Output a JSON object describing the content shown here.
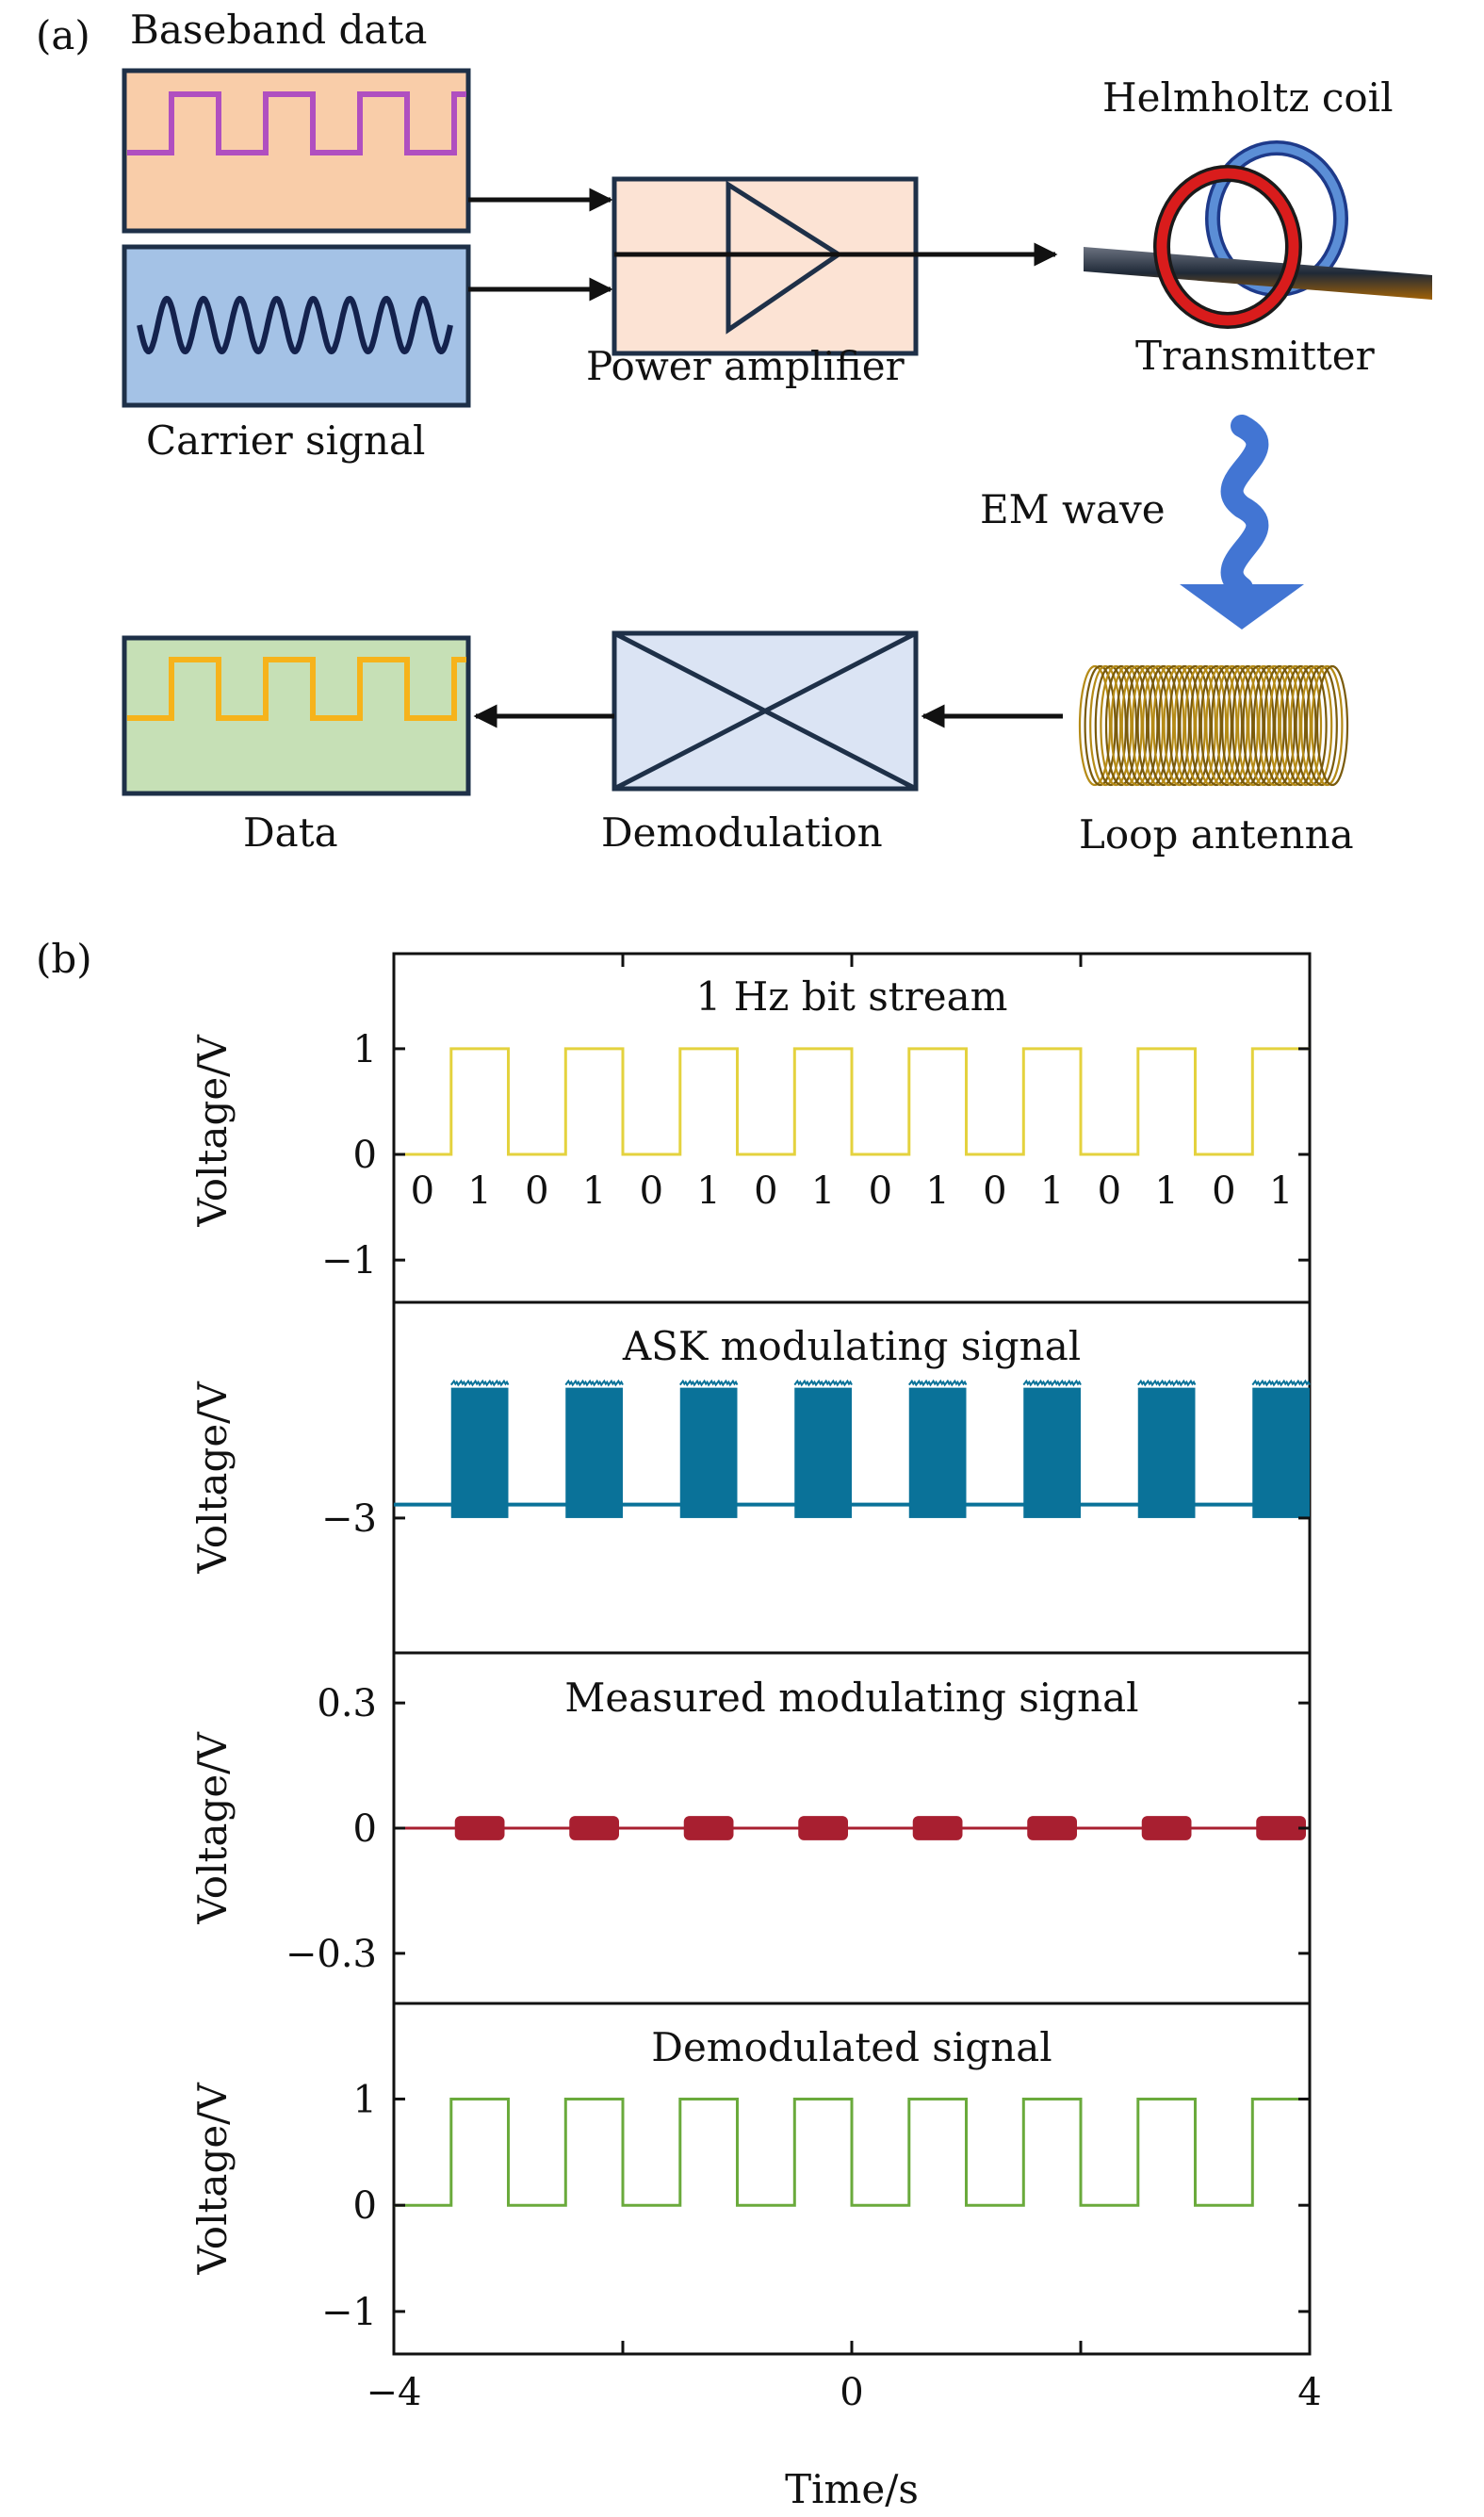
{
  "panel_a": {
    "label": "(a)",
    "baseband_label": "Baseband data",
    "carrier_label": "Carrier signal",
    "amplifier_label": "Power amplifier",
    "helmholtz_label": "Helmholtz coil",
    "transmitter_label": "Transmitter",
    "em_wave_label": "EM wave",
    "loop_antenna_label": "Loop antenna",
    "demodulation_label": "Demodulation",
    "data_label": "Data",
    "colors": {
      "baseband_box": "#f9cda9",
      "baseband_wave": "#b04fc0",
      "carrier_box": "#a4c2e6",
      "carrier_wave": "#14224d",
      "amplifier_box": "#fce3d4",
      "demod_box": "#dbe4f4",
      "data_box": "#c6e0b6",
      "data_wave": "#f6b31b",
      "em_arrow": "#4275d3"
    }
  },
  "panel_b": {
    "label": "(b)",
    "xlabel": "Time/s",
    "ylabel": "Voltage/V",
    "xticks": [
      "−4",
      "0",
      "4"
    ],
    "subplots": [
      {
        "title": "1 Hz bit stream",
        "color": "#e4d23e",
        "yticks": [
          "1",
          "0",
          "−1"
        ],
        "bits": [
          "0",
          "1",
          "0",
          "1",
          "0",
          "1",
          "0",
          "1",
          "0",
          "1",
          "0",
          "1",
          "0",
          "1",
          "0",
          "1"
        ]
      },
      {
        "title": "ASK modulating signal",
        "color": "#0a7299",
        "yticks": [
          "−3"
        ]
      },
      {
        "title": "Measured modulating signal",
        "color": "#a81f30",
        "yticks": [
          "0.3",
          "0",
          "−0.3"
        ]
      },
      {
        "title": "Demodulated signal",
        "color": "#6aaa3c",
        "yticks": [
          "1",
          "0",
          "−1"
        ]
      }
    ]
  },
  "chart_data": [
    {
      "type": "line",
      "title": "1 Hz bit stream",
      "xlabel": "",
      "ylabel": "Voltage/V",
      "xlim": [
        -4,
        4
      ],
      "ylim": [
        -1.4,
        1.9
      ],
      "x": [
        -4,
        -3.5,
        -3.5,
        -3,
        -3,
        -2.5,
        -2.5,
        -2,
        -2,
        -1.5,
        -1.5,
        -1,
        -1,
        -0.5,
        -0.5,
        0,
        0,
        0.5,
        0.5,
        1,
        1,
        1.5,
        1.5,
        2,
        2,
        2.5,
        2.5,
        3,
        3,
        3.5,
        3.5,
        4
      ],
      "y": [
        0,
        0,
        1,
        1,
        0,
        0,
        1,
        1,
        0,
        0,
        1,
        1,
        0,
        0,
        1,
        1,
        0,
        0,
        1,
        1,
        0,
        0,
        1,
        1,
        0,
        0,
        1,
        1,
        0,
        0,
        1,
        1
      ]
    },
    {
      "type": "area",
      "title": "ASK modulating signal",
      "xlabel": "",
      "ylabel": "Voltage/V",
      "xlim": [
        -4,
        4
      ],
      "baseline": -2.85,
      "bursts": [
        {
          "start": -3.5,
          "end": -3.0,
          "min": -3.0,
          "max": -1.55
        },
        {
          "start": -2.5,
          "end": -2.0,
          "min": -3.0,
          "max": -1.55
        },
        {
          "start": -1.5,
          "end": -1.0,
          "min": -3.0,
          "max": -1.55
        },
        {
          "start": -0.5,
          "end": 0.0,
          "min": -3.0,
          "max": -1.55
        },
        {
          "start": 0.5,
          "end": 1.0,
          "min": -3.0,
          "max": -1.55
        },
        {
          "start": 1.5,
          "end": 2.0,
          "min": -3.0,
          "max": -1.55
        },
        {
          "start": 2.5,
          "end": 3.0,
          "min": -3.0,
          "max": -1.55
        },
        {
          "start": 3.5,
          "end": 4.0,
          "min": -3.0,
          "max": -1.55
        }
      ]
    },
    {
      "type": "area",
      "title": "Measured modulating signal",
      "xlabel": "",
      "ylabel": "Voltage/V",
      "xlim": [
        -4,
        4
      ],
      "ylim": [
        -0.42,
        0.42
      ],
      "baseline": 0,
      "bursts": [
        {
          "start": -3.5,
          "end": -3.0,
          "min": -0.02,
          "max": 0.02
        },
        {
          "start": -2.5,
          "end": -2.0,
          "min": -0.02,
          "max": 0.02
        },
        {
          "start": -1.5,
          "end": -1.0,
          "min": -0.02,
          "max": 0.02
        },
        {
          "start": -0.5,
          "end": 0.0,
          "min": -0.02,
          "max": 0.02
        },
        {
          "start": 0.5,
          "end": 1.0,
          "min": -0.02,
          "max": 0.02
        },
        {
          "start": 1.5,
          "end": 2.0,
          "min": -0.02,
          "max": 0.02
        },
        {
          "start": 2.5,
          "end": 3.0,
          "min": -0.02,
          "max": 0.02
        },
        {
          "start": 3.5,
          "end": 4.0,
          "min": -0.02,
          "max": 0.02
        }
      ]
    },
    {
      "type": "line",
      "title": "Demodulated signal",
      "xlabel": "Time/s",
      "ylabel": "Voltage/V",
      "xlim": [
        -4,
        4
      ],
      "ylim": [
        -1.4,
        1.9
      ],
      "x": [
        -4,
        -3.5,
        -3.5,
        -3,
        -3,
        -2.5,
        -2.5,
        -2,
        -2,
        -1.5,
        -1.5,
        -1,
        -1,
        -0.5,
        -0.5,
        0,
        0,
        0.5,
        0.5,
        1,
        1,
        1.5,
        1.5,
        2,
        2,
        2.5,
        2.5,
        3,
        3,
        3.5,
        3.5,
        4
      ],
      "y": [
        0,
        0,
        1,
        1,
        0,
        0,
        1,
        1,
        0,
        0,
        1,
        1,
        0,
        0,
        1,
        1,
        0,
        0,
        1,
        1,
        0,
        0,
        1,
        1,
        0,
        0,
        1,
        1,
        0,
        0,
        1,
        1
      ]
    }
  ]
}
